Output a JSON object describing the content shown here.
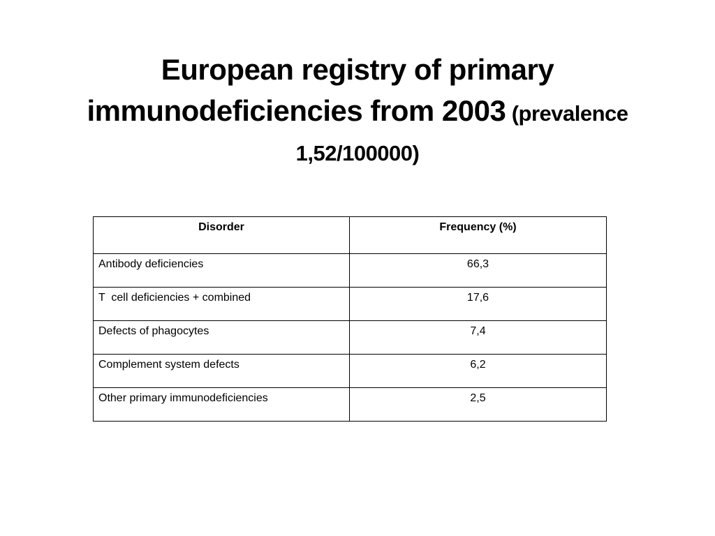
{
  "slide": {
    "title_main": "European registry of primary immunodeficiencies from 2003",
    "title_sub": "(prevalence 1,52/100000)"
  },
  "table": {
    "headers": [
      "Disorder",
      "Frequency (%)"
    ],
    "rows": [
      {
        "disorder": "Antibody deficiencies",
        "frequency": "66,3"
      },
      {
        "disorder": "T  cell deficiencies + combined",
        "frequency": "17,6"
      },
      {
        "disorder": "Defects of phagocytes",
        "frequency": "7,4"
      },
      {
        "disorder": "Complement system defects",
        "frequency": "6,2"
      },
      {
        "disorder": "Other primary immunodeficiencies",
        "frequency": "2,5"
      }
    ]
  }
}
